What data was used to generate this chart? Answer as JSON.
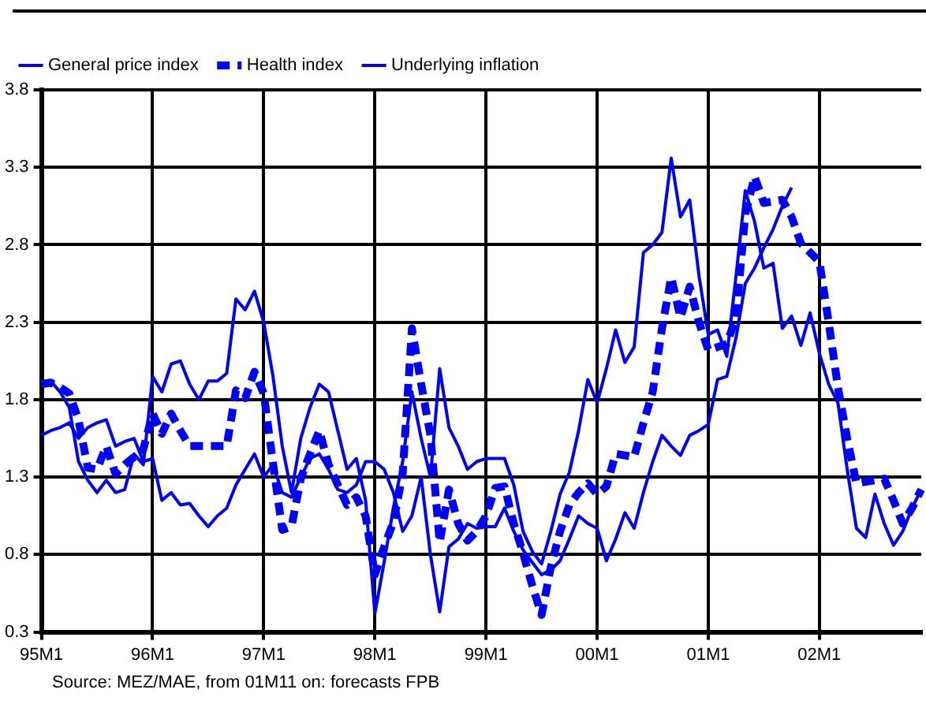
{
  "chart_data": {
    "type": "line",
    "categories": [
      "95M1",
      null,
      null,
      null,
      null,
      null,
      null,
      null,
      null,
      null,
      null,
      null,
      "96M1",
      null,
      null,
      null,
      null,
      null,
      null,
      null,
      null,
      null,
      null,
      null,
      "97M1",
      null,
      null,
      null,
      null,
      null,
      null,
      null,
      null,
      null,
      null,
      null,
      "98M1",
      null,
      null,
      null,
      null,
      null,
      null,
      null,
      null,
      null,
      null,
      null,
      "99M1",
      null,
      null,
      null,
      null,
      null,
      null,
      null,
      null,
      null,
      null,
      null,
      "00M1",
      null,
      null,
      null,
      null,
      null,
      null,
      null,
      null,
      null,
      null,
      null,
      "01M1",
      null,
      null,
      null,
      null,
      null,
      null,
      null,
      null,
      null,
      null,
      null,
      "02M1",
      null,
      null,
      null,
      null,
      null,
      null,
      null,
      null,
      null,
      null,
      null
    ],
    "series": [
      {
        "name": "General price index",
        "color": "#0000ff",
        "line_style": "solid",
        "values": [
          1.9,
          1.92,
          1.85,
          1.75,
          1.4,
          1.28,
          1.2,
          1.28,
          1.2,
          1.22,
          1.45,
          1.38,
          1.95,
          1.85,
          2.03,
          2.05,
          1.9,
          1.8,
          1.92,
          1.92,
          1.97,
          2.45,
          2.38,
          2.5,
          2.3,
          1.95,
          1.5,
          1.2,
          1.55,
          1.75,
          1.9,
          1.85,
          1.6,
          1.35,
          1.42,
          1.15,
          0.42,
          0.75,
          1.1,
          1.4,
          1.85,
          1.55,
          1.3,
          2.0,
          1.62,
          1.5,
          1.35,
          1.4,
          1.42,
          1.42,
          1.42,
          1.25,
          0.95,
          0.82,
          0.74,
          0.95,
          1.19,
          1.33,
          1.6,
          1.93,
          1.78,
          2.0,
          2.25,
          2.04,
          2.14,
          2.75,
          2.8,
          2.88,
          3.36,
          2.98,
          3.09,
          2.6,
          2.22,
          2.25,
          2.08,
          2.6,
          3.15,
          2.95,
          2.65,
          2.68,
          2.26,
          2.34,
          2.15,
          2.36,
          2.1,
          1.9,
          1.78,
          1.35,
          0.97,
          0.91,
          1.19,
          1.0,
          0.86,
          0.95,
          1.1,
          1.22
        ]
      },
      {
        "name": "Health index",
        "color": "#0000ff",
        "line_style": "dashed",
        "values": [
          1.9,
          1.91,
          1.88,
          1.84,
          1.67,
          1.36,
          1.35,
          1.5,
          1.32,
          1.38,
          1.43,
          1.48,
          1.71,
          1.58,
          1.71,
          1.6,
          1.5,
          1.5,
          1.5,
          1.5,
          1.5,
          1.86,
          1.81,
          1.98,
          1.84,
          1.39,
          0.96,
          0.98,
          1.29,
          1.45,
          1.6,
          1.38,
          1.25,
          1.12,
          1.17,
          1.05,
          0.67,
          0.85,
          1.01,
          1.32,
          2.26,
          1.9,
          1.57,
          0.88,
          1.22,
          1.0,
          0.89,
          0.95,
          1.05,
          1.23,
          1.24,
          1.0,
          0.81,
          0.6,
          0.41,
          0.72,
          0.95,
          1.12,
          1.2,
          1.26,
          1.19,
          1.24,
          1.45,
          1.44,
          1.43,
          1.65,
          1.85,
          2.26,
          2.59,
          2.33,
          2.53,
          2.3,
          2.12,
          2.14,
          2.16,
          2.33,
          3.0,
          3.24,
          3.07,
          3.08,
          3.09,
          2.98,
          2.81,
          2.75,
          2.69,
          2.3,
          1.88,
          1.55,
          1.26,
          1.27,
          1.28,
          1.29,
          1.15,
          1.0,
          1.1,
          1.22
        ]
      },
      {
        "name": "Underlying inflation",
        "color": "#0000ff",
        "line_style": "solid",
        "values": [
          1.57,
          1.6,
          1.62,
          1.65,
          1.55,
          1.62,
          1.65,
          1.67,
          1.5,
          1.53,
          1.55,
          1.4,
          1.42,
          1.15,
          1.2,
          1.12,
          1.13,
          1.05,
          0.98,
          1.05,
          1.1,
          1.25,
          1.35,
          1.45,
          1.3,
          1.38,
          1.2,
          1.17,
          1.3,
          1.42,
          1.45,
          1.35,
          1.22,
          1.2,
          1.25,
          1.4,
          1.4,
          1.35,
          1.2,
          0.95,
          1.05,
          1.3,
          0.8,
          0.43,
          0.85,
          0.9,
          1.0,
          0.97,
          0.98,
          0.98,
          1.1,
          0.95,
          0.83,
          0.75,
          0.67,
          0.7,
          0.76,
          0.9,
          1.05,
          1.0,
          0.97,
          0.76,
          0.9,
          1.07,
          0.97,
          1.2,
          1.4,
          1.57,
          1.5,
          1.44,
          1.57,
          1.6,
          1.64,
          1.93,
          1.95,
          2.2,
          2.55,
          2.65,
          2.78,
          2.9,
          3.05,
          3.17,
          null,
          null,
          null,
          null,
          null,
          null,
          null,
          null,
          null,
          null,
          null,
          null,
          null,
          null
        ]
      }
    ],
    "ylim": [
      0.3,
      3.8
    ],
    "yticks": [
      0.3,
      0.8,
      1.3,
      1.8,
      2.3,
      2.8,
      3.3,
      3.8
    ],
    "grid": true,
    "legend": "top left",
    "marker": "none",
    "annotations": [
      "Source: MEZ/MAE, from 01M11 on: forecasts FPB"
    ]
  }
}
